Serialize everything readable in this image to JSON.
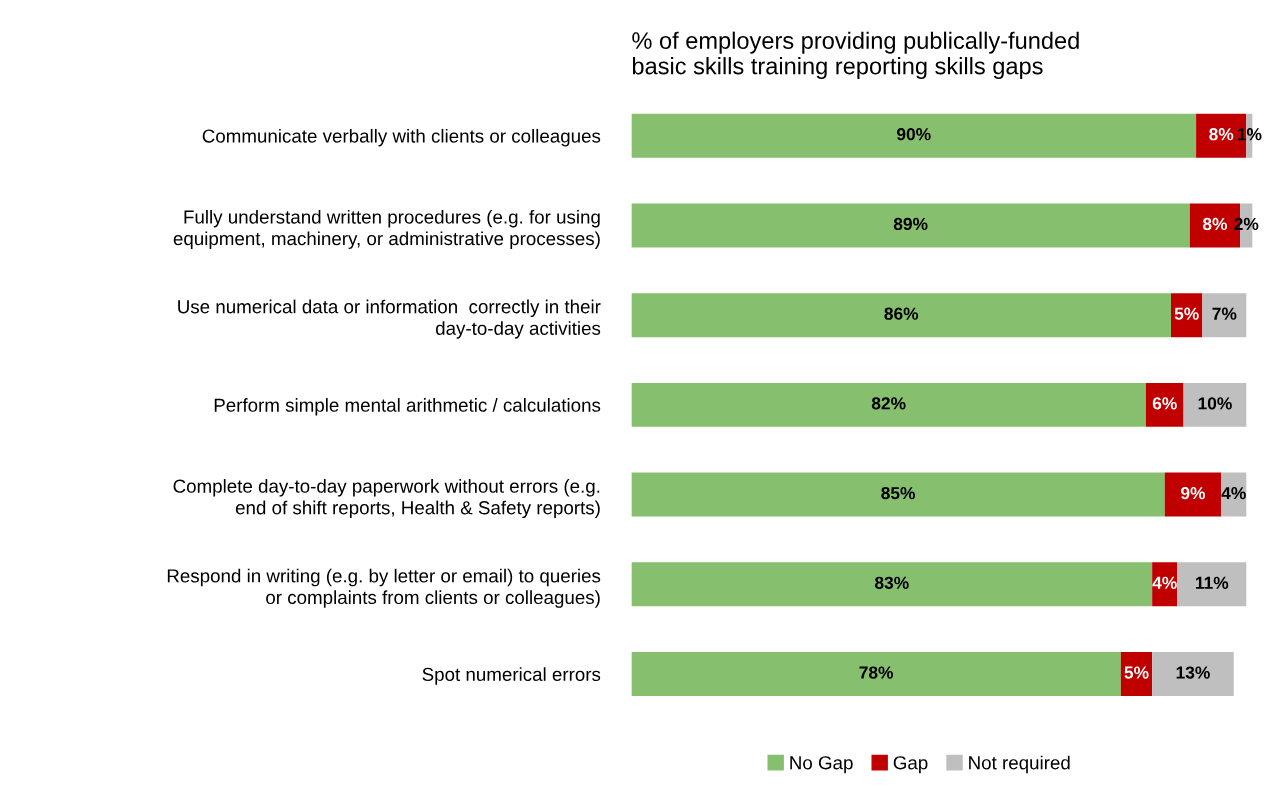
{
  "chart_data": {
    "type": "bar",
    "orientation": "horizontal",
    "stacked": true,
    "legend": "bottom",
    "grid": false,
    "title": "% of employers providing publically-funded\nbasic skills training reporting skills gaps",
    "categories": [
      "Communicate verbally with clients or colleagues",
      "Fully understand written procedures (e.g. for using\nequipment, machinery, or administrative processes)",
      "Use numerical data or information  correctly in their\nday-to-day activities",
      "Perform simple mental arithmetic / calculations",
      "Complete day-to-day paperwork without errors (e.g.\nend of shift reports, Health & Safety reports)",
      "Respond in writing (e.g. by letter or email) to queries\nor complaints from clients or colleagues)",
      "Spot numerical errors"
    ],
    "series": [
      {
        "name": "No Gap",
        "color": "#86bf6e",
        "values": [
          90,
          89,
          86,
          82,
          85,
          83,
          78
        ],
        "value_labels": [
          "90%",
          "89%",
          "86%",
          "82%",
          "85%",
          "83%",
          "78%"
        ]
      },
      {
        "name": "Gap",
        "color": "#c00000",
        "values": [
          8,
          8,
          5,
          6,
          9,
          4,
          5
        ],
        "value_labels": [
          "8%",
          "8%",
          "5%",
          "6%",
          "9%",
          "4%",
          "5%"
        ]
      },
      {
        "name": "Not required",
        "color": "#bfbfbf",
        "values": [
          1,
          2,
          7,
          10,
          4,
          11,
          13
        ],
        "value_labels": [
          "1%",
          "2%",
          "7%",
          "10%",
          "4%",
          "11%",
          "13%"
        ]
      }
    ]
  }
}
